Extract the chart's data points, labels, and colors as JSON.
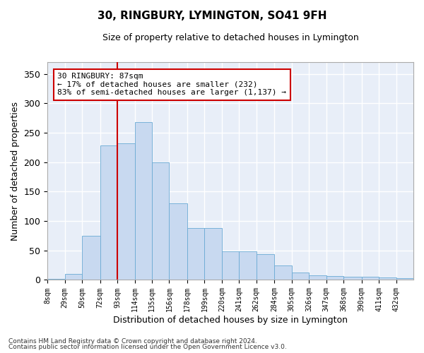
{
  "title": "30, RINGBURY, LYMINGTON, SO41 9FH",
  "subtitle": "Size of property relative to detached houses in Lymington",
  "xlabel": "Distribution of detached houses by size in Lymington",
  "ylabel": "Number of detached properties",
  "bar_color": "#c8d9f0",
  "bar_edge_color": "#6aaad4",
  "background_color": "#e8eef8",
  "grid_color": "#ffffff",
  "vline_color": "#cc0000",
  "annotation_text": "30 RINGBURY: 87sqm\n← 17% of detached houses are smaller (232)\n83% of semi-detached houses are larger (1,137) →",
  "annotation_box_color": "#cc0000",
  "bins": [
    8,
    29,
    50,
    72,
    93,
    114,
    135,
    156,
    178,
    199,
    220,
    241,
    262,
    284,
    305,
    326,
    347,
    368,
    390,
    411,
    432
  ],
  "values": [
    2,
    10,
    75,
    228,
    232,
    268,
    200,
    130,
    88,
    88,
    48,
    48,
    44,
    25,
    12,
    8,
    7,
    5,
    5,
    4,
    3
  ],
  "yticks": [
    0,
    50,
    100,
    150,
    200,
    250,
    300,
    350
  ],
  "ylim": [
    0,
    370
  ],
  "footnote1": "Contains HM Land Registry data © Crown copyright and database right 2024.",
  "footnote2": "Contains public sector information licensed under the Open Government Licence v3.0."
}
